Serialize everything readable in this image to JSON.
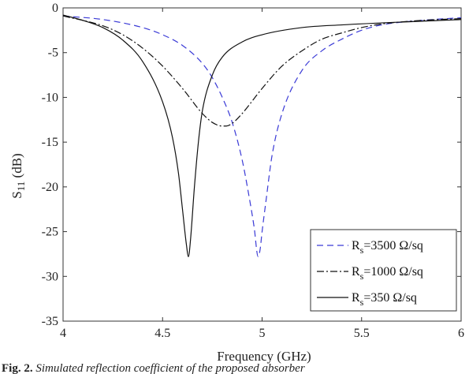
{
  "caption": {
    "label": "Fig. 2.",
    "text": "Simulated reflection coefficient of the proposed absorber"
  },
  "chart_data": {
    "type": "line",
    "xlabel": "Frequency (GHz)",
    "ylabel": {
      "main": "S",
      "sub": "11",
      "unit": " (dB)"
    },
    "xlim": [
      4,
      6
    ],
    "ylim": [
      -35,
      0
    ],
    "xticks": [
      4,
      4.5,
      5,
      5.5,
      6
    ],
    "xtick_labels": [
      "4",
      "4.5",
      "5",
      "5.5",
      "6"
    ],
    "yticks": [
      0,
      -5,
      -10,
      -15,
      -20,
      -25,
      -30,
      -35
    ],
    "ytick_labels": [
      "0",
      "-5",
      "-10",
      "-15",
      "-20",
      "-25",
      "-30",
      "-35"
    ],
    "grid": false,
    "legend_position": "bottom-right",
    "series": [
      {
        "name_main": "R",
        "name_sub": "s",
        "name_rest": "=3500 Ω/sq",
        "color": "#3a3ad6",
        "dash": "8,5",
        "x": [
          4.0,
          4.2,
          4.4,
          4.5,
          4.6,
          4.7,
          4.75,
          4.8,
          4.85,
          4.9,
          4.93,
          4.96,
          4.98,
          4.99,
          5.0,
          5.02,
          5.05,
          5.1,
          5.2,
          5.3,
          5.4,
          5.5,
          5.6,
          5.8,
          6.0
        ],
        "y": [
          -0.9,
          -1.3,
          -2.2,
          -3.0,
          -4.2,
          -6.2,
          -7.8,
          -10.0,
          -12.8,
          -17.0,
          -20.5,
          -24.5,
          -27.8,
          -27.0,
          -25.0,
          -21.5,
          -16.5,
          -11.8,
          -7.0,
          -4.8,
          -3.5,
          -2.5,
          -1.9,
          -1.4,
          -1.1
        ]
      },
      {
        "name_main": "R",
        "name_sub": "s",
        "name_rest": "=1000 Ω/sq",
        "color": "#111111",
        "dash": "9,3,2,3",
        "x": [
          4.0,
          4.2,
          4.3,
          4.4,
          4.5,
          4.6,
          4.7,
          4.75,
          4.8,
          4.82,
          4.85,
          4.9,
          5.0,
          5.1,
          5.2,
          5.3,
          5.4,
          5.5,
          5.6,
          5.8,
          6.0
        ],
        "y": [
          -0.9,
          -2.0,
          -3.0,
          -4.5,
          -6.5,
          -9.0,
          -11.8,
          -12.8,
          -13.2,
          -13.2,
          -12.9,
          -11.8,
          -9.0,
          -6.5,
          -4.8,
          -3.5,
          -2.8,
          -2.2,
          -1.8,
          -1.4,
          -1.2
        ]
      },
      {
        "name_main": "R",
        "name_sub": "s",
        "name_rest": "=350 Ω/sq",
        "color": "#111111",
        "dash": "",
        "x": [
          4.0,
          4.1,
          4.2,
          4.3,
          4.4,
          4.5,
          4.55,
          4.58,
          4.6,
          4.62,
          4.63,
          4.64,
          4.66,
          4.68,
          4.7,
          4.75,
          4.8,
          4.9,
          5.0,
          5.2,
          5.4,
          6.0
        ],
        "y": [
          -0.8,
          -1.4,
          -2.2,
          -3.6,
          -6.0,
          -10.5,
          -14.5,
          -18.5,
          -22.5,
          -26.5,
          -27.8,
          -26.0,
          -20.0,
          -15.0,
          -11.5,
          -7.5,
          -5.5,
          -3.8,
          -3.0,
          -2.2,
          -1.9,
          -1.3
        ]
      }
    ]
  }
}
